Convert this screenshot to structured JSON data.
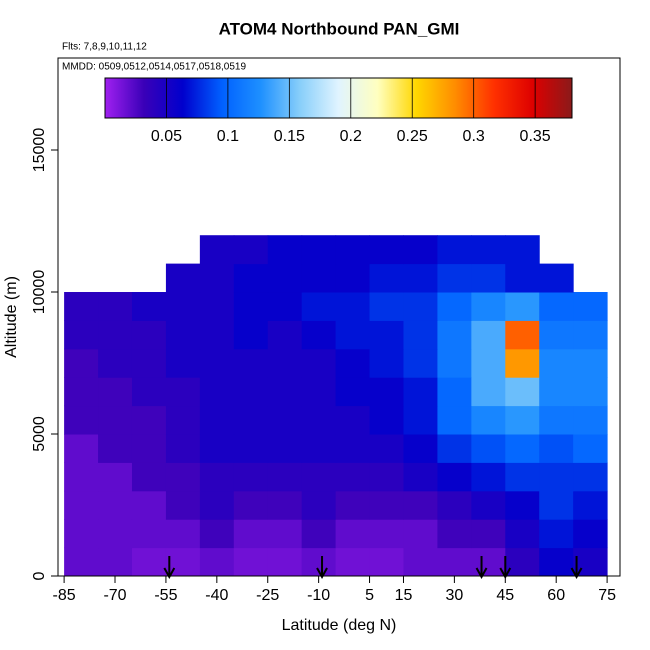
{
  "chart_data": {
    "type": "heatmap",
    "title": "ATOM4 Northbound PAN_GMI",
    "subtitle": "Flts: 7,8,9,10,11,12",
    "annotation": "MMDD: 0509,0512,0514,0517,0518,0519",
    "x_label": "Latitude (deg N)",
    "y_label": "Altitude (m)",
    "xlim": [
      -86.8,
      78.8
    ],
    "ylim": [
      0,
      18240
    ],
    "xticks": [
      -85,
      -70,
      -55,
      -40,
      -25,
      -10,
      5,
      15,
      30,
      45,
      60,
      75
    ],
    "yticks": [
      0,
      5000,
      10000,
      15000
    ],
    "clim": [
      0,
      0.38
    ],
    "cticks": [
      0.05,
      0.1,
      0.15,
      0.2,
      0.25,
      0.3,
      0.35
    ],
    "colormap": [
      "#a020f0",
      "#3a00b8",
      "#0000cd",
      "#0060ff",
      "#1e90ff",
      "#87cefa",
      "#e0f4ff",
      "#ffffc0",
      "#ffd700",
      "#ff8c00",
      "#ff3000",
      "#dd0000",
      "#8b1a1a"
    ],
    "x_edges": [
      -85,
      -75,
      -65,
      -55,
      -45,
      -35,
      -25,
      -15,
      -5,
      5,
      15,
      25,
      35,
      45,
      55,
      65,
      75
    ],
    "y_edges": [
      0,
      1000,
      2000,
      3000,
      4000,
      5000,
      6000,
      7000,
      8000,
      9000,
      10000,
      11000,
      12000
    ],
    "z": [
      [
        0.02,
        0.02,
        0.015,
        0.015,
        0.02,
        0.015,
        0.015,
        0.02,
        0.015,
        0.015,
        0.02,
        0.02,
        0.02,
        0.04,
        0.06,
        0.05
      ],
      [
        0.02,
        0.02,
        0.02,
        0.02,
        0.03,
        0.02,
        0.02,
        0.03,
        0.02,
        0.02,
        0.02,
        0.03,
        0.03,
        0.05,
        0.07,
        0.06
      ],
      [
        0.02,
        0.02,
        0.02,
        0.03,
        0.04,
        0.03,
        0.03,
        0.04,
        0.03,
        0.03,
        0.03,
        0.04,
        0.05,
        0.06,
        0.08,
        0.07
      ],
      [
        0.02,
        0.02,
        0.03,
        0.03,
        0.04,
        0.04,
        0.04,
        0.04,
        0.04,
        0.04,
        0.05,
        0.06,
        0.07,
        0.08,
        0.08,
        0.08
      ],
      [
        0.02,
        0.03,
        0.03,
        0.04,
        0.05,
        0.05,
        0.05,
        0.05,
        0.05,
        0.05,
        0.06,
        0.08,
        0.09,
        0.1,
        0.09,
        0.1
      ],
      [
        0.03,
        0.03,
        0.03,
        0.04,
        0.05,
        0.05,
        0.05,
        0.05,
        0.05,
        0.06,
        0.07,
        0.1,
        0.12,
        0.13,
        0.11,
        0.11
      ],
      [
        0.03,
        0.03,
        0.04,
        0.04,
        0.05,
        0.05,
        0.05,
        0.05,
        0.06,
        0.06,
        0.07,
        0.1,
        0.14,
        0.15,
        0.12,
        0.12
      ],
      [
        0.03,
        0.04,
        0.04,
        0.05,
        0.05,
        0.05,
        0.05,
        0.05,
        0.06,
        0.07,
        0.08,
        0.11,
        0.14,
        0.28,
        0.12,
        0.12
      ],
      [
        0.04,
        0.04,
        0.04,
        0.05,
        0.05,
        0.06,
        0.05,
        0.06,
        0.07,
        0.07,
        0.08,
        0.11,
        0.14,
        0.3,
        0.11,
        0.11
      ],
      [
        0.04,
        0.04,
        0.05,
        0.05,
        0.05,
        0.06,
        0.06,
        0.07,
        0.07,
        0.08,
        0.08,
        0.1,
        0.12,
        0.13,
        0.1,
        0.1
      ],
      [
        null,
        null,
        null,
        0.05,
        0.05,
        0.06,
        0.06,
        0.06,
        0.06,
        0.07,
        0.07,
        0.08,
        0.08,
        0.07,
        0.07,
        null
      ],
      [
        null,
        null,
        null,
        null,
        0.05,
        0.05,
        0.06,
        0.06,
        0.06,
        0.06,
        0.06,
        0.07,
        0.07,
        0.07,
        null,
        null
      ]
    ],
    "arrows": [
      -54,
      -9,
      38,
      45,
      66
    ]
  }
}
